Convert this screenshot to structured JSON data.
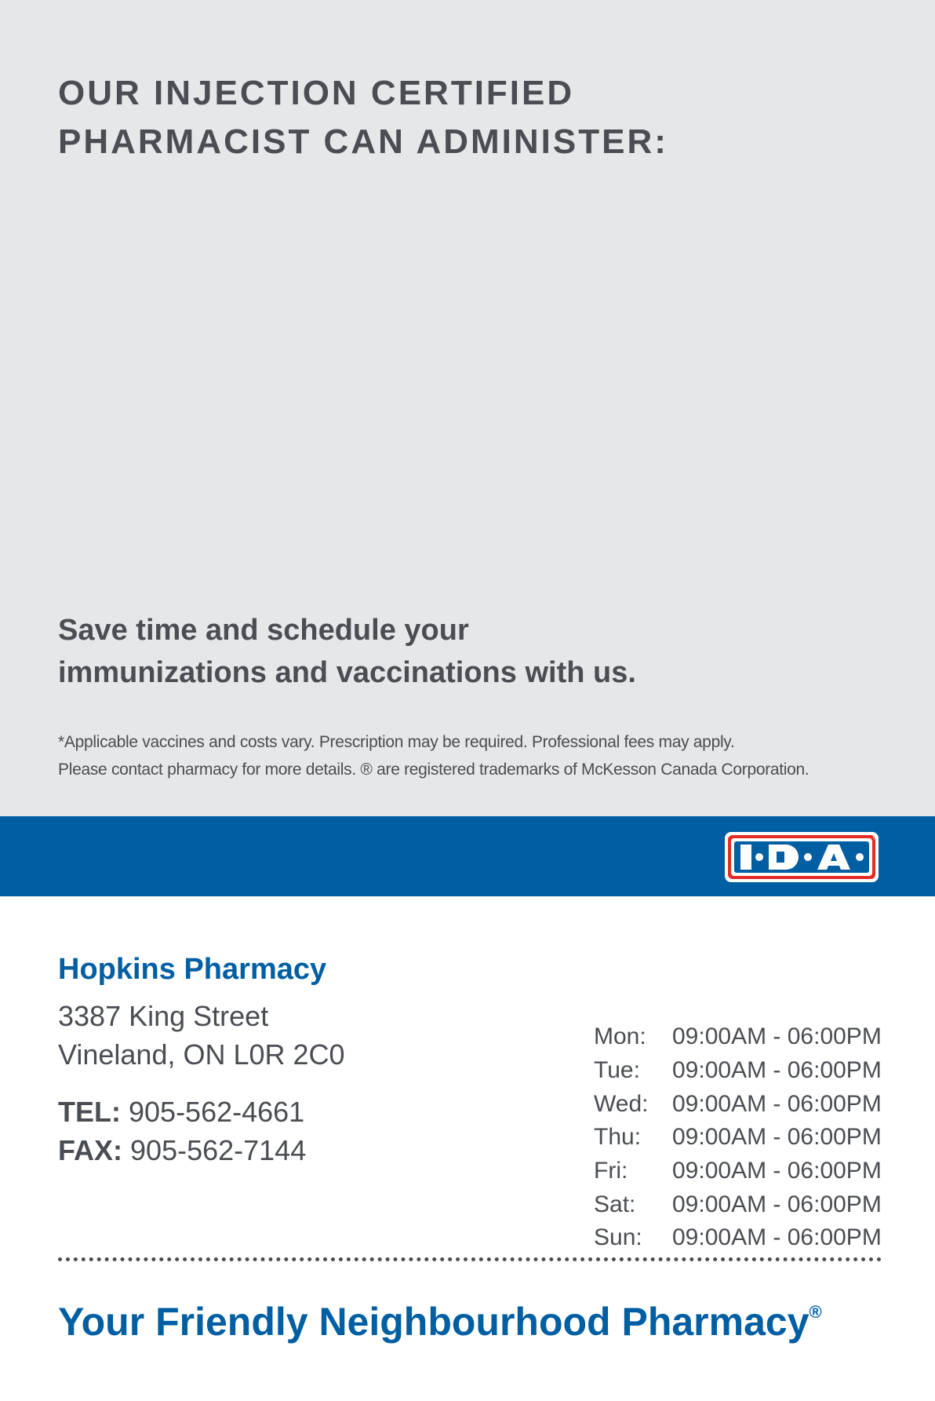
{
  "header": {
    "line1": "OUR INJECTION CERTIFIED",
    "line2": "PHARMACIST CAN ADMINISTER:"
  },
  "promo": {
    "line1": "Save time and schedule your",
    "line2": "immunizations and vaccinations with us."
  },
  "disclaimer": {
    "line1": "*Applicable vaccines and costs vary. Prescription may be required. Professional fees may apply.",
    "line2": "Please contact pharmacy for more details. ® are registered trademarks of McKesson Canada Corporation."
  },
  "brand": {
    "logo_text": "I·D·A",
    "band_color": "#005ea2",
    "logo_red": "#e42c25"
  },
  "store": {
    "name": "Hopkins Pharmacy",
    "address1": "3387 King Street",
    "address2": "Vineland, ON L0R 2C0",
    "tel_label": "TEL:",
    "tel": "905-562-4661",
    "fax_label": "FAX:",
    "fax": "905-562-7144"
  },
  "hours": [
    {
      "day": "Mon:",
      "time": "09:00AM - 06:00PM"
    },
    {
      "day": "Tue:",
      "time": "09:00AM - 06:00PM"
    },
    {
      "day": "Wed:",
      "time": "09:00AM - 06:00PM"
    },
    {
      "day": "Thu:",
      "time": "09:00AM - 06:00PM"
    },
    {
      "day": "Fri:",
      "time": "09:00AM - 06:00PM"
    },
    {
      "day": "Sat:",
      "time": "09:00AM - 06:00PM"
    },
    {
      "day": "Sun:",
      "time": "09:00AM - 06:00PM"
    }
  ],
  "slogan": {
    "text": "Your Friendly Neighbourhood Pharmacy",
    "mark": "®"
  }
}
